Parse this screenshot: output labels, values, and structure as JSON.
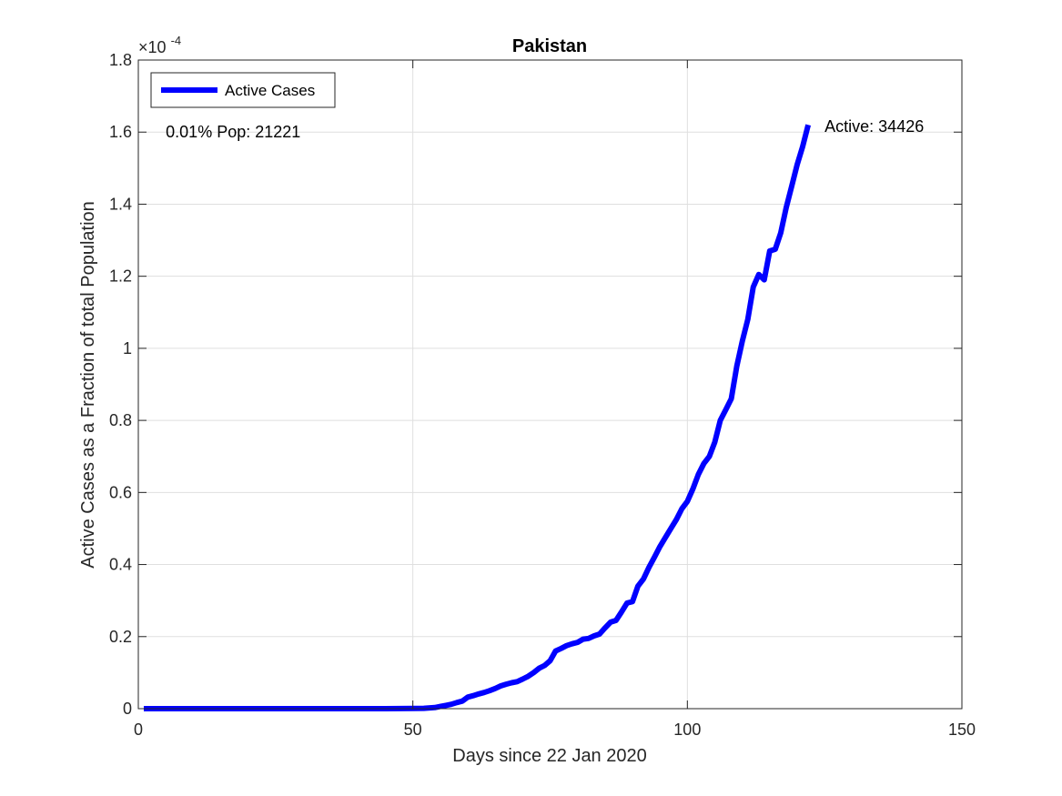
{
  "chart_data": {
    "type": "line",
    "title": "Pakistan",
    "xlabel": "Days since 22 Jan 2020",
    "ylabel": "Active Cases as a Fraction of total Population",
    "xlim": [
      0,
      150
    ],
    "ylim": [
      0,
      0.00018
    ],
    "x_ticks": [
      0,
      50,
      100,
      150
    ],
    "x_tick_labels": [
      "0",
      "50",
      "100",
      "150"
    ],
    "y_ticks": [
      0,
      2e-05,
      4e-05,
      6e-05,
      8e-05,
      0.0001,
      0.00012,
      0.00014,
      0.00016,
      0.00018
    ],
    "y_tick_labels": [
      "0",
      "0.2",
      "0.4",
      "0.6",
      "0.8",
      "1",
      "1.2",
      "1.4",
      "1.6",
      "1.8"
    ],
    "y_exponent_label": "×10",
    "y_exponent_power": "-4",
    "grid": true,
    "legend_position": "top-left",
    "series": [
      {
        "name": "Active Cases",
        "color": "#0000ff",
        "x": [
          1,
          10,
          20,
          30,
          40,
          45,
          50,
          52,
          54,
          55,
          56,
          57,
          58,
          59,
          60,
          61,
          62,
          63,
          64,
          65,
          66,
          67,
          68,
          69,
          70,
          71,
          72,
          73,
          74,
          75,
          76,
          77,
          78,
          79,
          80,
          81,
          82,
          83,
          84,
          85,
          86,
          87,
          88,
          89,
          90,
          91,
          92,
          93,
          94,
          95,
          96,
          97,
          98,
          99,
          100,
          101,
          102,
          103,
          104,
          105,
          106,
          107,
          108,
          109,
          110,
          111,
          112,
          113,
          114,
          115,
          116,
          117,
          118,
          119,
          120,
          121,
          122
        ],
        "y": [
          0,
          0,
          0,
          0,
          0,
          0,
          5e-08,
          1e-07,
          3e-07,
          6e-07,
          9e-07,
          1.2e-06,
          1.7e-06,
          2.1e-06,
          3.2e-06,
          3.6e-06,
          4.1e-06,
          4.5e-06,
          5e-06,
          5.6e-06,
          6.3e-06,
          6.8e-06,
          7.2e-06,
          7.5e-06,
          8.2e-06,
          9e-06,
          1e-05,
          1.12e-05,
          1.2e-05,
          1.33e-05,
          1.6e-05,
          1.67e-05,
          1.75e-05,
          1.8e-05,
          1.84e-05,
          1.93e-05,
          1.95e-05,
          2.02e-05,
          2.07e-05,
          2.24e-05,
          2.4e-05,
          2.45e-05,
          2.68e-05,
          2.93e-05,
          2.97e-05,
          3.4e-05,
          3.6e-05,
          3.92e-05,
          4.2e-05,
          4.5e-05,
          4.75e-05,
          5e-05,
          5.25e-05,
          5.55e-05,
          5.75e-05,
          6.1e-05,
          6.5e-05,
          6.8e-05,
          7e-05,
          7.4e-05,
          8e-05,
          8.3e-05,
          8.6e-05,
          9.5e-05,
          0.000102,
          0.000108,
          0.000117,
          0.0001205,
          0.000119,
          0.000127,
          0.0001275,
          0.000132,
          0.000139,
          0.000145,
          0.000151,
          0.000156,
          0.000162
        ]
      }
    ],
    "annotations": [
      {
        "text": "0.01% Pop: 21221",
        "x": 5,
        "y": 0.00016
      },
      {
        "text": "Active: 34426",
        "x": 125,
        "y": 0.0001616
      }
    ]
  }
}
